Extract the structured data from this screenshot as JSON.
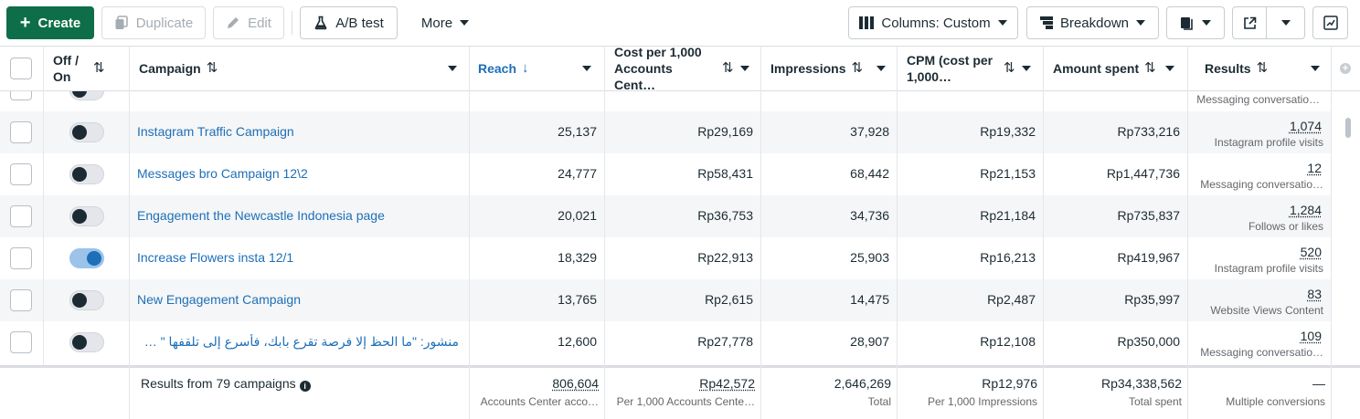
{
  "toolbar": {
    "create": "Create",
    "duplicate": "Duplicate",
    "edit": "Edit",
    "ab_test": "A/B test",
    "more": "More",
    "columns": "Columns: Custom",
    "breakdown": "Breakdown"
  },
  "columns": {
    "off_on": [
      "Off /",
      "On"
    ],
    "campaign": "Campaign",
    "reach": "Reach",
    "cost_per_1000": [
      "Cost per 1,000",
      "Accounts Cent…"
    ],
    "impressions": "Impressions",
    "cpm": [
      "CPM (cost per",
      "1,000…"
    ],
    "amount_spent": "Amount spent",
    "results": "Results"
  },
  "partial_row": {
    "result_sub": "Messaging conversatio…"
  },
  "rows": [
    {
      "name": "Instagram Traffic Campaign",
      "on": false,
      "reach": "25,137",
      "cost": "Rp29,169",
      "impressions": "37,928",
      "cpm": "Rp19,332",
      "spent": "Rp733,216",
      "result": "1,074",
      "result_type": "Instagram profile visits"
    },
    {
      "name": "Messages bro Campaign 12\\2",
      "on": false,
      "reach": "24,777",
      "cost": "Rp58,431",
      "impressions": "68,442",
      "cpm": "Rp21,153",
      "spent": "Rp1,447,736",
      "result": "12",
      "result_type": "Messaging conversatio…"
    },
    {
      "name": "Engagement the Newcastle Indonesia page",
      "on": false,
      "reach": "20,021",
      "cost": "Rp36,753",
      "impressions": "34,736",
      "cpm": "Rp21,184",
      "spent": "Rp735,837",
      "result": "1,284",
      "result_type": "Follows or likes"
    },
    {
      "name": "Increase Flowers insta 12/1",
      "on": true,
      "reach": "18,329",
      "cost": "Rp22,913",
      "impressions": "25,903",
      "cpm": "Rp16,213",
      "spent": "Rp419,967",
      "result": "520",
      "result_type": "Instagram profile visits"
    },
    {
      "name": "New Engagement Campaign",
      "on": false,
      "reach": "13,765",
      "cost": "Rp2,615",
      "impressions": "14,475",
      "cpm": "Rp2,487",
      "spent": "Rp35,997",
      "result": "83",
      "result_type": "Website Views Content"
    },
    {
      "name": "منشور: \"ما الحظ إلا فرصة تقرع بابك، فأسرع إلى تلقفها \" جون \"",
      "on": false,
      "reach": "12,600",
      "cost": "Rp27,778",
      "impressions": "28,907",
      "cpm": "Rp12,108",
      "spent": "Rp350,000",
      "result": "109",
      "result_type": "Messaging conversatio…"
    }
  ],
  "footer": {
    "label": "Results from 79 campaigns",
    "reach": "806,604",
    "reach_sub": "Accounts Center acco…",
    "cost": "Rp42,572",
    "cost_sub": "Per 1,000 Accounts Cente…",
    "impressions": "2,646,269",
    "impressions_sub": "Total",
    "cpm": "Rp12,976",
    "cpm_sub": "Per 1,000 Impressions",
    "spent": "Rp34,338,562",
    "spent_sub": "Total spent",
    "results": "—",
    "results_sub": "Multiple conversions"
  }
}
